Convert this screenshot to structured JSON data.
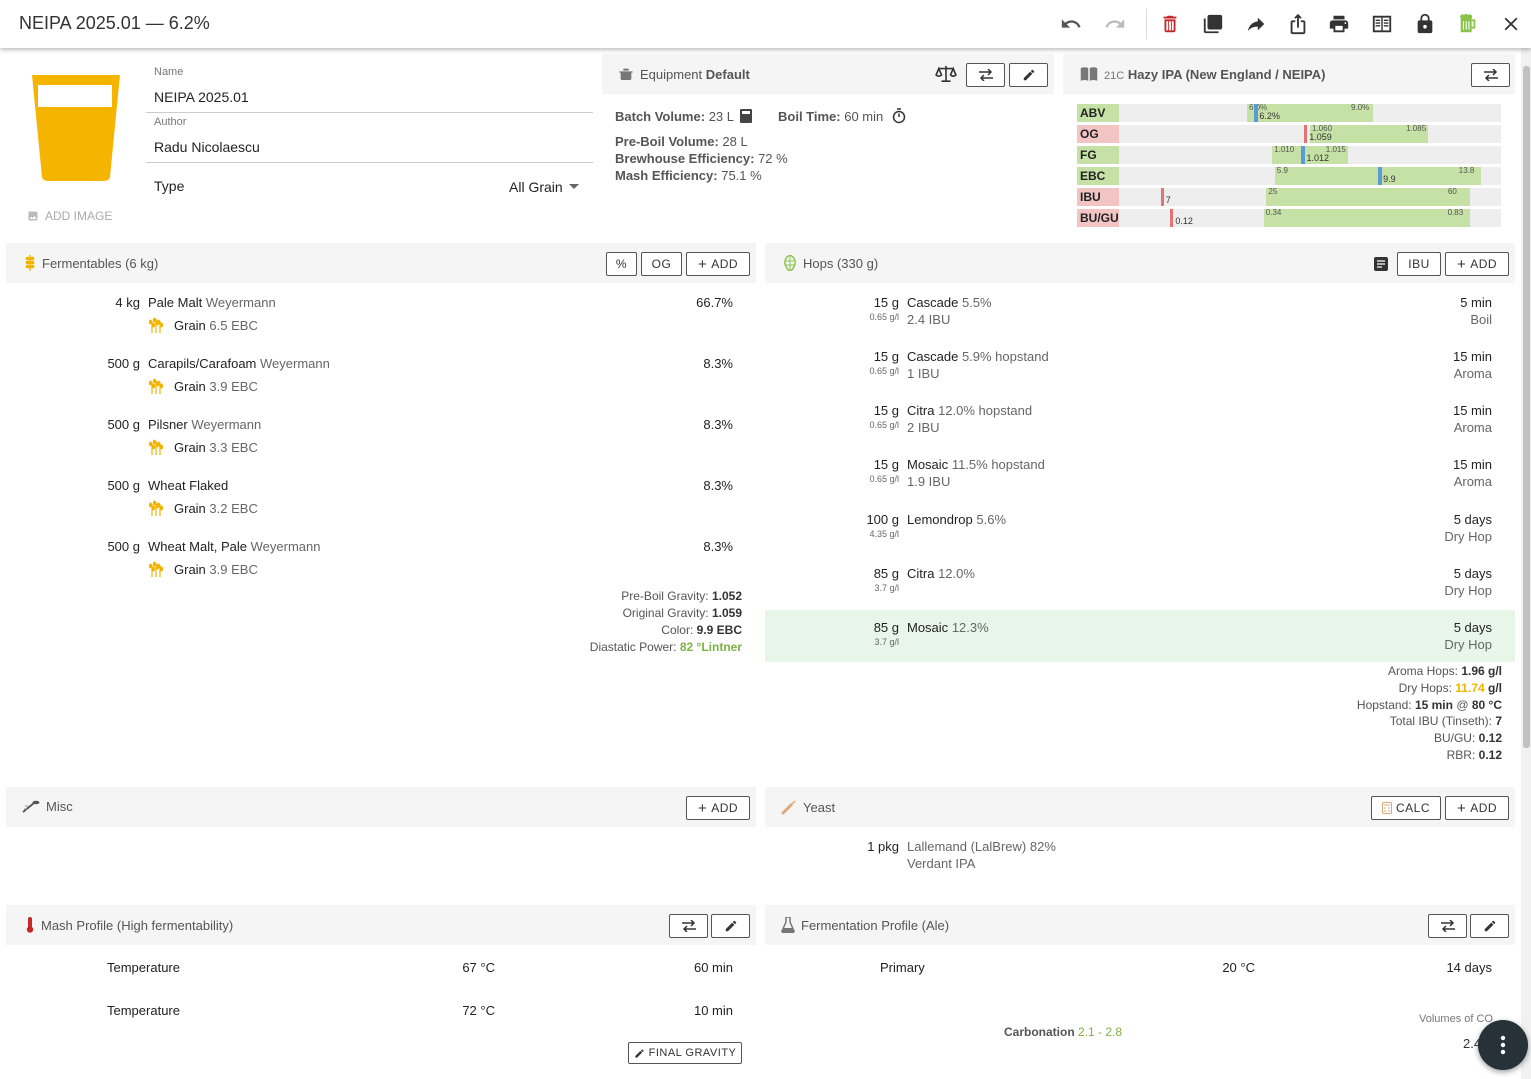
{
  "toolbar": {
    "title": "NEIPA 2025.01 — 6.2%"
  },
  "recipe": {
    "name_label": "Name",
    "name": "NEIPA 2025.01",
    "author_label": "Author",
    "author": "Radu Nicolaescu",
    "type_label": "Type",
    "type": "All Grain",
    "add_image": "ADD IMAGE",
    "glass_color": "#f5b400"
  },
  "equipment": {
    "title": "Equipment",
    "name": "Default",
    "batch_volume_label": "Batch Volume:",
    "batch_volume": "23 L",
    "boil_time_label": "Boil Time:",
    "boil_time": "60 min",
    "preboil_label": "Pre-Boil Volume:",
    "preboil": "28 L",
    "brewhouse_label": "Brewhouse Efficiency:",
    "brewhouse": "72 %",
    "mash_eff_label": "Mash Efficiency:",
    "mash_eff": "75.1 %"
  },
  "style": {
    "code": "21C",
    "name": "Hazy IPA (New England / NEIPA)",
    "rows": [
      {
        "label": "ABV",
        "min": "6.0%",
        "max": "9.0%",
        "value": "6.2%",
        "min_v": 6.0,
        "max_v": 9.0,
        "v": 6.2,
        "lo": 3,
        "hi": 12,
        "in_range": true
      },
      {
        "label": "OG",
        "min": "1.060",
        "max": "1.085",
        "value": "1.059",
        "min_v": 1.06,
        "max_v": 1.085,
        "v": 1.059,
        "lo": 1.02,
        "hi": 1.1,
        "in_range": false
      },
      {
        "label": "FG",
        "min": "1.010",
        "max": "1.015",
        "value": "1.012",
        "min_v": 1.01,
        "max_v": 1.015,
        "v": 1.012,
        "lo": 1.0,
        "hi": 1.025,
        "in_range": true
      },
      {
        "label": "EBC",
        "min": "5.9",
        "max": "13.8",
        "value": "9.9",
        "min_v": 5.9,
        "max_v": 13.8,
        "v": 9.9,
        "lo": 0,
        "hi": 14.5,
        "in_range": true
      },
      {
        "label": "IBU",
        "min": "25",
        "max": "60",
        "value": "7",
        "min_v": 25,
        "max_v": 60,
        "v": 7,
        "lo": 0,
        "hi": 65,
        "in_range": false
      },
      {
        "label": "BU/GU",
        "min": "0.34",
        "max": "0.83",
        "value": "0.12",
        "min_v": 0.34,
        "max_v": 0.83,
        "v": 0.12,
        "lo": 0,
        "hi": 0.9,
        "in_range": false
      }
    ]
  },
  "fermentables": {
    "title": "Fermentables (6 kg)",
    "btn_pct": "%",
    "btn_og": "OG",
    "btn_add": "ADD",
    "items": [
      {
        "amount": "4 kg",
        "name": "Pale Malt",
        "supplier": "Weyermann",
        "type": "Grain",
        "color": "6.5 EBC",
        "pct": "66.7%"
      },
      {
        "amount": "500 g",
        "name": "Carapils/Carafoam",
        "supplier": "Weyermann",
        "type": "Grain",
        "color": "3.9 EBC",
        "pct": "8.3%"
      },
      {
        "amount": "500 g",
        "name": "Pilsner",
        "supplier": "Weyermann",
        "type": "Grain",
        "color": "3.3 EBC",
        "pct": "8.3%"
      },
      {
        "amount": "500 g",
        "name": "Wheat Flaked",
        "supplier": "",
        "type": "Grain",
        "color": "3.2 EBC",
        "pct": "8.3%"
      },
      {
        "amount": "500 g",
        "name": "Wheat Malt, Pale",
        "supplier": "Weyermann",
        "type": "Grain",
        "color": "3.9 EBC",
        "pct": "8.3%"
      }
    ],
    "summary": {
      "preboil_label": "Pre-Boil Gravity:",
      "preboil": "1.052",
      "og_label": "Original Gravity:",
      "og": "1.059",
      "color_label": "Color:",
      "color": "9.9 EBC",
      "dp_label": "Diastatic Power:",
      "dp": "82 °Lintner"
    }
  },
  "hops": {
    "title": "Hops (330 g)",
    "btn_ibu": "IBU",
    "btn_add": "ADD",
    "items": [
      {
        "amount": "15 g",
        "rate": "0.65 g/l",
        "name": "Cascade",
        "alpha": "5.5%",
        "ibu": "2.4 IBU",
        "time": "5 min",
        "use": "Boil"
      },
      {
        "amount": "15 g",
        "rate": "0.65 g/l",
        "name": "Cascade",
        "alpha": "5.9% hopstand",
        "ibu": "1 IBU",
        "time": "15 min",
        "use": "Aroma"
      },
      {
        "amount": "15 g",
        "rate": "0.65 g/l",
        "name": "Citra",
        "alpha": "12.0% hopstand",
        "ibu": "2 IBU",
        "time": "15 min",
        "use": "Aroma"
      },
      {
        "amount": "15 g",
        "rate": "0.65 g/l",
        "name": "Mosaic",
        "alpha": "11.5% hopstand",
        "ibu": "1.9 IBU",
        "time": "15 min",
        "use": "Aroma"
      },
      {
        "amount": "100 g",
        "rate": "4.35 g/l",
        "name": "Lemondrop",
        "alpha": "5.6%",
        "ibu": "",
        "time": "5 days",
        "use": "Dry Hop"
      },
      {
        "amount": "85 g",
        "rate": "3.7 g/l",
        "name": "Citra",
        "alpha": "12.0%",
        "ibu": "",
        "time": "5 days",
        "use": "Dry Hop"
      },
      {
        "amount": "85 g",
        "rate": "3.7 g/l",
        "name": "Mosaic",
        "alpha": "12.3%",
        "ibu": "",
        "time": "5 days",
        "use": "Dry Hop"
      }
    ],
    "summary": {
      "aroma_label": "Aroma Hops:",
      "aroma": "1.96 g/l",
      "dry_label": "Dry Hops:",
      "dry_num": "11.74",
      "dry_unit": "g/l",
      "hopstand_label": "Hopstand:",
      "hopstand_time": "15 min",
      "hopstand_at": "@",
      "hopstand_temp": "80 °C",
      "ibu_label": "Total IBU (Tinseth):",
      "ibu": "7",
      "bugu_label": "BU/GU:",
      "bugu": "0.12",
      "rbr_label": "RBR:",
      "rbr": "0.12"
    }
  },
  "misc": {
    "title": "Misc",
    "btn_add": "ADD"
  },
  "yeast": {
    "title": "Yeast",
    "btn_calc": "CALC",
    "btn_add": "ADD",
    "amount": "1 pkg",
    "lab": "Lallemand (LalBrew)",
    "attenuation": "82%",
    "name": "Verdant IPA"
  },
  "mash": {
    "title": "Mash Profile (High fermentability)",
    "steps": [
      {
        "name": "Temperature",
        "temp": "67 °C",
        "time": "60 min"
      },
      {
        "name": "Temperature",
        "temp": "72 °C",
        "time": "10 min"
      }
    ],
    "final_gravity_btn": "FINAL GRAVITY"
  },
  "fermentation": {
    "title": "Fermentation Profile (Ale)",
    "steps": [
      {
        "name": "Primary",
        "temp": "20 °C",
        "time": "14 days"
      }
    ],
    "carbonation_label": "Carbonation",
    "carbonation_range": "2.1 - 2.8",
    "volumes_label": "Volumes of CO",
    "volumes_value": "2.4"
  }
}
